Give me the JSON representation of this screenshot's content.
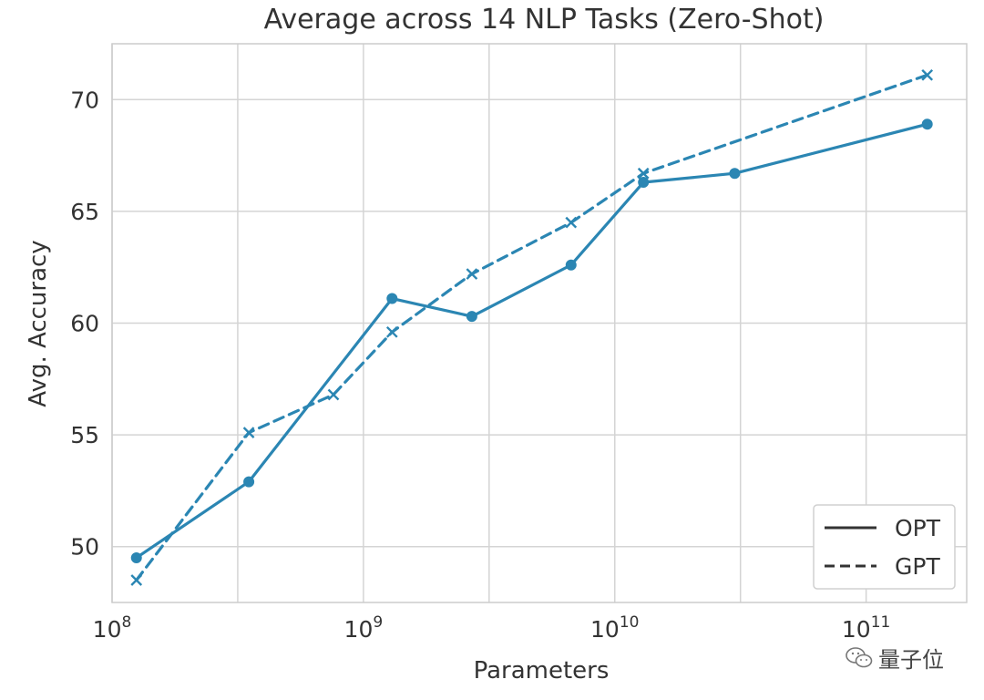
{
  "chart_data": {
    "type": "line",
    "title": "Average across 14 NLP Tasks (Zero-Shot)",
    "xlabel": "Parameters",
    "ylabel": "Avg. Accuracy",
    "xscale": "log",
    "xlim": [
      100000000,
      251188643151
    ],
    "ylim": [
      47.5,
      72.5
    ],
    "x_ticks": [
      {
        "base": "10",
        "exp": "8",
        "value": 100000000
      },
      {
        "base": "10",
        "exp": "9",
        "value": 1000000000
      },
      {
        "base": "10",
        "exp": "10",
        "value": 10000000000
      },
      {
        "base": "10",
        "exp": "11",
        "value": 100000000000
      }
    ],
    "y_ticks": [
      {
        "label": "50",
        "value": 50
      },
      {
        "label": "55",
        "value": 55
      },
      {
        "label": "60",
        "value": 60
      },
      {
        "label": "65",
        "value": 65
      },
      {
        "label": "70",
        "value": 70
      }
    ],
    "x_minor_grid": [
      316227766,
      3162277660,
      31622776600
    ],
    "legend_position": "lower right",
    "series": [
      {
        "name": "OPT",
        "style": "solid",
        "marker": "circle",
        "color": "#2b86b3",
        "points": [
          {
            "x": 125000000,
            "y": 49.5
          },
          {
            "x": 350000000,
            "y": 52.9
          },
          {
            "x": 1300000000,
            "y": 61.1
          },
          {
            "x": 2700000000,
            "y": 60.3
          },
          {
            "x": 6700000000,
            "y": 62.6
          },
          {
            "x": 13000000000,
            "y": 66.3
          },
          {
            "x": 30000000000,
            "y": 66.7
          },
          {
            "x": 175000000000,
            "y": 68.9
          }
        ]
      },
      {
        "name": "GPT",
        "style": "dashed",
        "marker": "x",
        "color": "#2b86b3",
        "points": [
          {
            "x": 125000000,
            "y": 48.5
          },
          {
            "x": 350000000,
            "y": 55.1
          },
          {
            "x": 760000000,
            "y": 56.8
          },
          {
            "x": 1300000000,
            "y": 59.6
          },
          {
            "x": 2700000000,
            "y": 62.2
          },
          {
            "x": 6700000000,
            "y": 64.5
          },
          {
            "x": 13000000000,
            "y": 66.7
          },
          {
            "x": 175000000000,
            "y": 71.1
          }
        ]
      }
    ]
  },
  "watermark": {
    "text": "量子位",
    "icon": "wechat-icon"
  }
}
